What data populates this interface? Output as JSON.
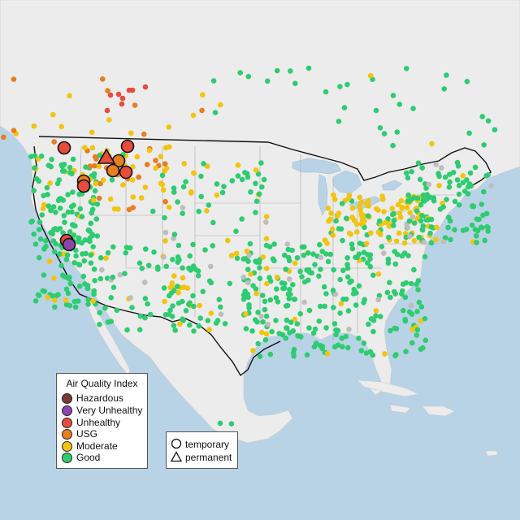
{
  "legend": {
    "title": "Air Quality Index",
    "categories": [
      {
        "label": "Hazardous",
        "color": "#7b3b32"
      },
      {
        "label": "Very Unhealthy",
        "color": "#8e44ad"
      },
      {
        "label": "Unhealthy",
        "color": "#e74c3c"
      },
      {
        "label": "USG",
        "color": "#e67e22"
      },
      {
        "label": "Moderate",
        "color": "#f1c40f"
      },
      {
        "label": "Good",
        "color": "#2ecc71"
      }
    ]
  },
  "shape_legend": {
    "temporary": "temporary",
    "permanent": "permanent"
  },
  "colors": {
    "water": "#b9d3e6",
    "land": "#ececec",
    "usa_land": "#f3f3f3",
    "border": "#111111",
    "no_data": "#bdbdbd"
  }
}
